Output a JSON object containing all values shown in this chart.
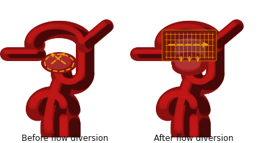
{
  "left_label": "Before flow diversion",
  "right_label": "After flow diversion",
  "bg_color": "#ffffff",
  "label_fontsize": 8.5,
  "label_color": "#111111",
  "artery_base": "#8B1111",
  "artery_light": "#C04040",
  "artery_dark": "#550000",
  "arrow_color": "#E8A000",
  "stent_face": "#7A2020",
  "stent_edge": "#CC8800",
  "figsize": [
    3.75,
    2.07
  ],
  "dpi": 100
}
